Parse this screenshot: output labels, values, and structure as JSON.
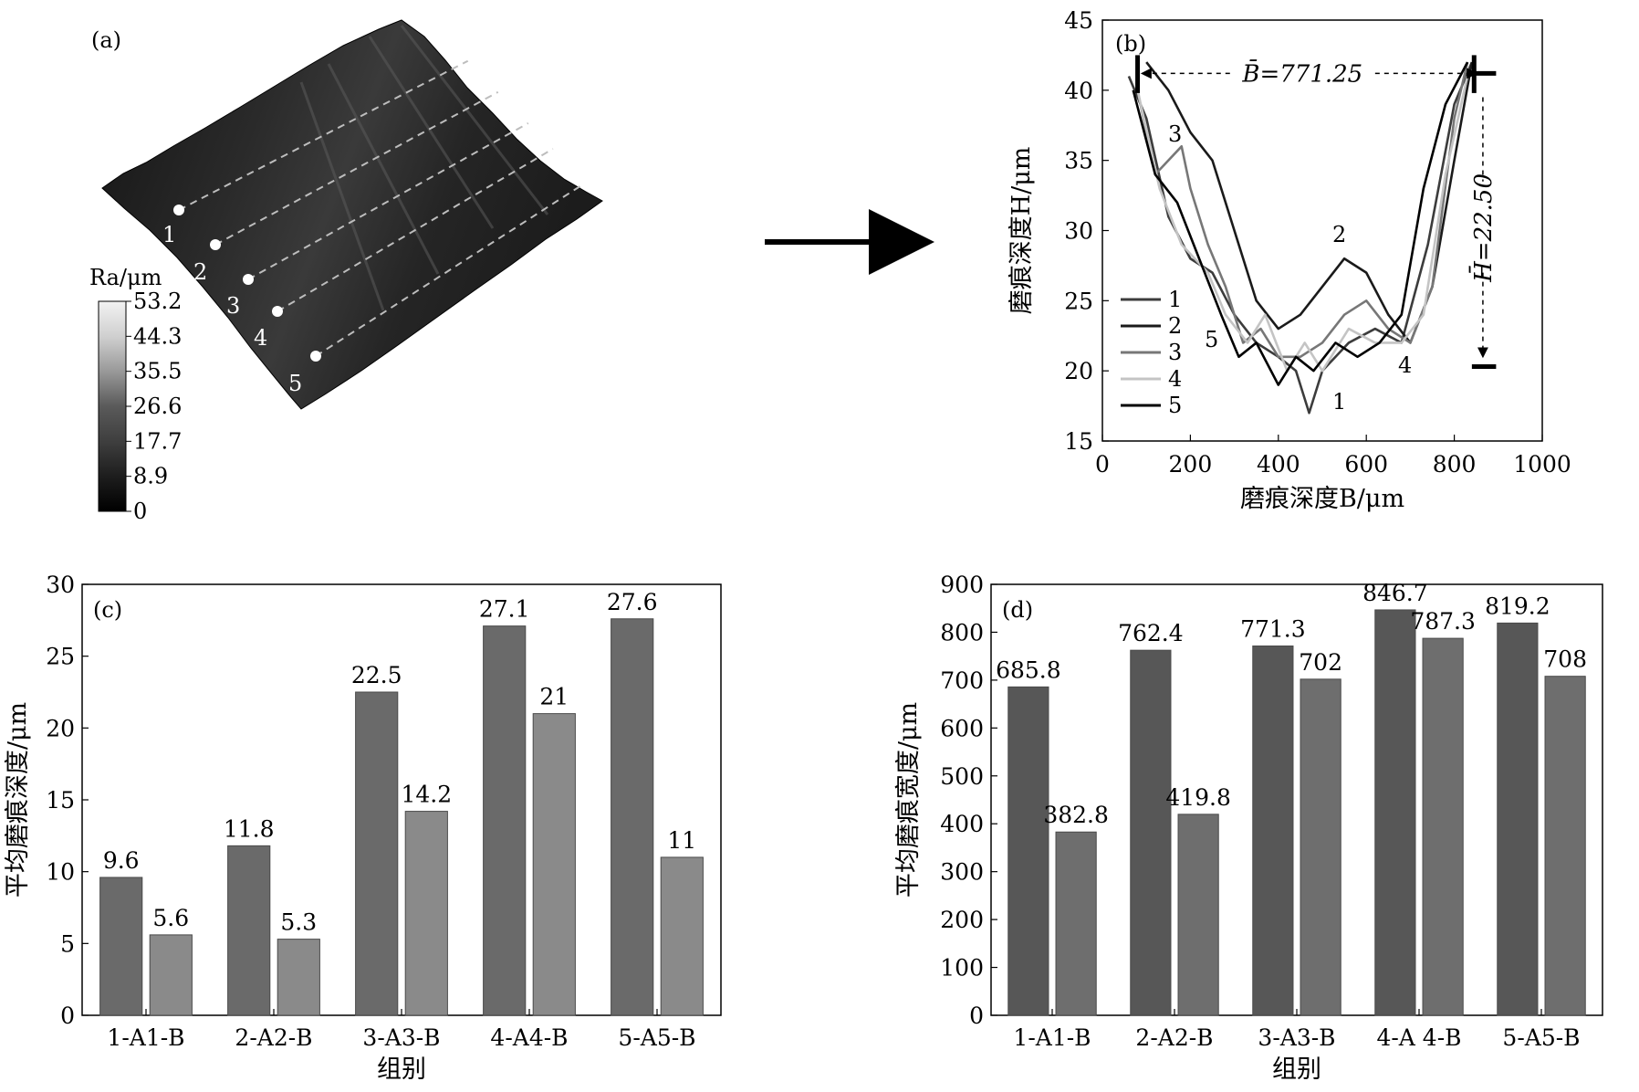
{
  "panel_a": {
    "label": "(a)",
    "colorbar_title": "Ra/μm",
    "colorbar_ticks": [
      "53.2",
      "44.3",
      "35.5",
      "26.6",
      "17.7",
      "8.9",
      "0"
    ],
    "track_labels": [
      "1",
      "2",
      "3",
      "4",
      "5"
    ]
  },
  "chart_data": [
    {
      "id": "b",
      "type": "line",
      "panel_label": "(b)",
      "xlabel": "磨痕深度B/μm",
      "ylabel": "磨痕深度H/μm",
      "xlim": [
        0,
        1000
      ],
      "ylim": [
        15,
        45
      ],
      "xticks": [
        0,
        200,
        400,
        600,
        800,
        1000
      ],
      "yticks": [
        15,
        20,
        25,
        30,
        35,
        40,
        45
      ],
      "legend_position": "bottom-left",
      "annotations": {
        "B_avg": "B̄=771.25",
        "H_avg": "H̄=22.50"
      },
      "series": [
        {
          "name": "1",
          "color": "#3c3c3c",
          "x": [
            60,
            100,
            150,
            200,
            250,
            300,
            350,
            400,
            440,
            470,
            500,
            560,
            620,
            680,
            740,
            800,
            840
          ],
          "y": [
            41,
            38,
            31,
            28,
            27,
            24,
            22,
            21,
            20,
            17,
            20,
            22,
            23,
            22,
            29,
            39,
            42
          ]
        },
        {
          "name": "2",
          "color": "#1a1a1a",
          "x": [
            100,
            150,
            200,
            250,
            300,
            350,
            400,
            450,
            500,
            550,
            600,
            650,
            700,
            750,
            800,
            840
          ],
          "y": [
            42,
            40,
            37,
            35,
            30,
            25,
            23,
            24,
            26,
            28,
            27,
            24,
            22,
            26,
            35,
            42
          ]
        },
        {
          "name": "3",
          "color": "#777777",
          "x": [
            80,
            120,
            180,
            200,
            240,
            280,
            320,
            360,
            400,
            450,
            500,
            550,
            600,
            650,
            700,
            750,
            800,
            830
          ],
          "y": [
            40,
            34,
            36,
            33,
            29,
            26,
            22,
            23,
            21,
            21,
            22,
            24,
            25,
            23,
            22,
            26,
            38,
            42
          ]
        },
        {
          "name": "4",
          "color": "#c4c4c4",
          "x": [
            80,
            130,
            180,
            240,
            280,
            330,
            370,
            420,
            460,
            500,
            560,
            620,
            680,
            730,
            780,
            830
          ],
          "y": [
            40,
            33,
            29,
            27,
            24,
            22,
            24,
            20,
            22,
            20,
            23,
            22,
            22,
            24,
            34,
            41
          ]
        },
        {
          "name": "5",
          "color": "#000000",
          "x": [
            70,
            120,
            170,
            220,
            270,
            310,
            350,
            400,
            440,
            480,
            530,
            580,
            630,
            680,
            730,
            780,
            830
          ],
          "y": [
            40,
            34,
            32,
            28,
            24,
            21,
            22,
            19,
            21,
            20,
            22,
            21,
            22,
            24,
            33,
            39,
            42
          ]
        }
      ]
    },
    {
      "id": "c",
      "type": "bar",
      "panel_label": "(c)",
      "xlabel": "组别",
      "ylabel": "平均磨痕深度/μm",
      "ylim": [
        0,
        30
      ],
      "yticks": [
        0,
        5,
        10,
        15,
        20,
        25,
        30
      ],
      "categories": [
        "1-A",
        "1-B",
        "2-A",
        "2-B",
        "3-A",
        "3-B",
        "4-A",
        "4-B",
        "5-A",
        "5-B"
      ],
      "values": [
        9.6,
        5.6,
        11.8,
        5.3,
        22.5,
        14.2,
        27.1,
        21,
        27.6,
        11
      ],
      "value_labels": [
        "9.6",
        "5.6",
        "11.8",
        "5.3",
        "22.5",
        "14.2",
        "27.1",
        "21",
        "27.6",
        "11"
      ],
      "group_labels": [
        "1-A1-B",
        "2-A2-B",
        "3-A3-B",
        "4-A4-B",
        "5-A5-B"
      ],
      "colors": {
        "A": "#6a6a6a",
        "B": "#8a8a8a"
      }
    },
    {
      "id": "d",
      "type": "bar",
      "panel_label": "(d)",
      "xlabel": "组别",
      "ylabel": "平均磨痕宽度/μm",
      "ylim": [
        0,
        900
      ],
      "yticks": [
        0,
        100,
        200,
        300,
        400,
        500,
        600,
        700,
        800,
        900
      ],
      "categories": [
        "1-A",
        "1-B",
        "2-A",
        "2-B",
        "3-A",
        "3-B",
        "4-A",
        "4-B",
        "5-A",
        "5-B"
      ],
      "values": [
        685.8,
        382.8,
        762.4,
        419.8,
        771.3,
        702,
        846.7,
        787.3,
        819.2,
        708
      ],
      "value_labels": [
        "685.8",
        "382.8",
        "762.4",
        "419.8",
        "771.3",
        "702",
        "846.7",
        "787.3",
        "819.2",
        "708"
      ],
      "group_labels": [
        "1-A1-B",
        "2-A2-B",
        "3-A3-B",
        "4-A 4-B",
        "5-A5-B"
      ],
      "colors": {
        "A": "#575757",
        "B": "#6e6e6e"
      }
    }
  ]
}
